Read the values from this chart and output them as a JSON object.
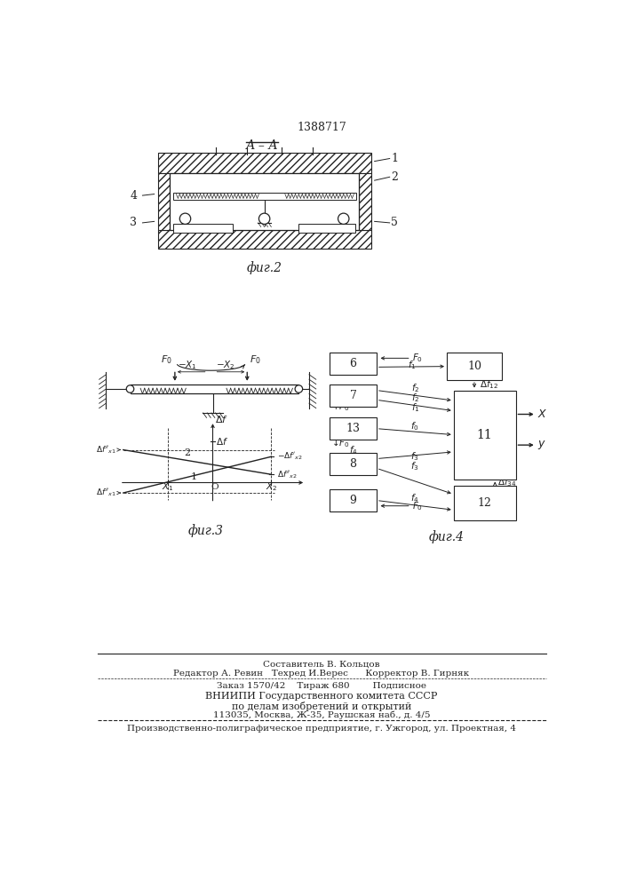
{
  "patent_number": "1388717",
  "background_color": "#ffffff",
  "line_color": "#222222",
  "fig2_caption": "фиг.2",
  "fig3_caption": "фиг.3",
  "fig4_caption": "фиг.4",
  "footer_lines": [
    "Составитель В. Кольцов",
    "Редактор А. Ревин   Техред И.Верес      Корректор В. Гирняк",
    "Заказ 1570/42    Тираж 680        Подписное",
    "ВНИИПИ Государственного комитета СССР",
    "по делам изобретений и открытий",
    "113035, Москва, Ж-35, Раушская наб., д. 4/5",
    "Производственно-полиграфическое предприятие, г. Ужгород, ул. Проектная, 4"
  ]
}
